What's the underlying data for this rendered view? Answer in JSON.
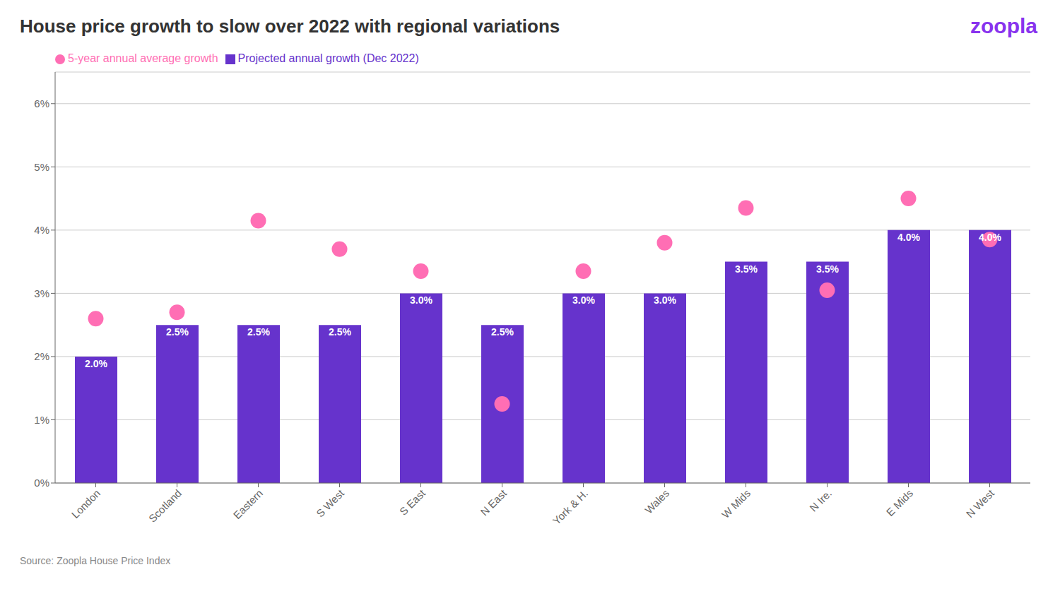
{
  "chart_data": {
    "type": "bar",
    "title": "House price growth to slow over 2022 with regional variations",
    "categories": [
      "London",
      "Scotland",
      "Eastern",
      "S West",
      "S East",
      "N East",
      "York & H.",
      "Wales",
      "W Mids",
      "N Ire.",
      "E Mids",
      "N West"
    ],
    "series": [
      {
        "name": "Projected annual growth (Dec 2022)",
        "type": "bar",
        "color": "#6633cc",
        "values": [
          2.0,
          2.5,
          2.5,
          2.5,
          3.0,
          2.5,
          3.0,
          3.0,
          3.5,
          3.5,
          4.0,
          4.0
        ],
        "value_labels": [
          "2.0%",
          "2.5%",
          "2.5%",
          "2.5%",
          "3.0%",
          "2.5%",
          "3.0%",
          "3.0%",
          "3.5%",
          "3.5%",
          "4.0%",
          "4.0%"
        ],
        "data_labels": true
      },
      {
        "name": "5-year annual average growth",
        "type": "scatter",
        "marker": "circle",
        "color": "#ff6eb4",
        "values": [
          2.6,
          2.7,
          4.15,
          3.7,
          3.35,
          1.25,
          3.35,
          3.8,
          4.35,
          3.05,
          4.5,
          3.85
        ]
      }
    ],
    "ylim": [
      0,
      6.5
    ],
    "yticks": [
      {
        "value": 0,
        "label": "0%"
      },
      {
        "value": 1,
        "label": "1%"
      },
      {
        "value": 2,
        "label": "2%"
      },
      {
        "value": 3,
        "label": "3%"
      },
      {
        "value": 4,
        "label": "4%"
      },
      {
        "value": 5,
        "label": "5%"
      },
      {
        "value": 6,
        "label": "6%"
      }
    ],
    "grid": true,
    "legend": "upper left",
    "annotations": [
      {
        "text": "zoopla",
        "color": "#8833ee"
      },
      {
        "text": "Source: Zoopla House Price Index"
      }
    ]
  }
}
